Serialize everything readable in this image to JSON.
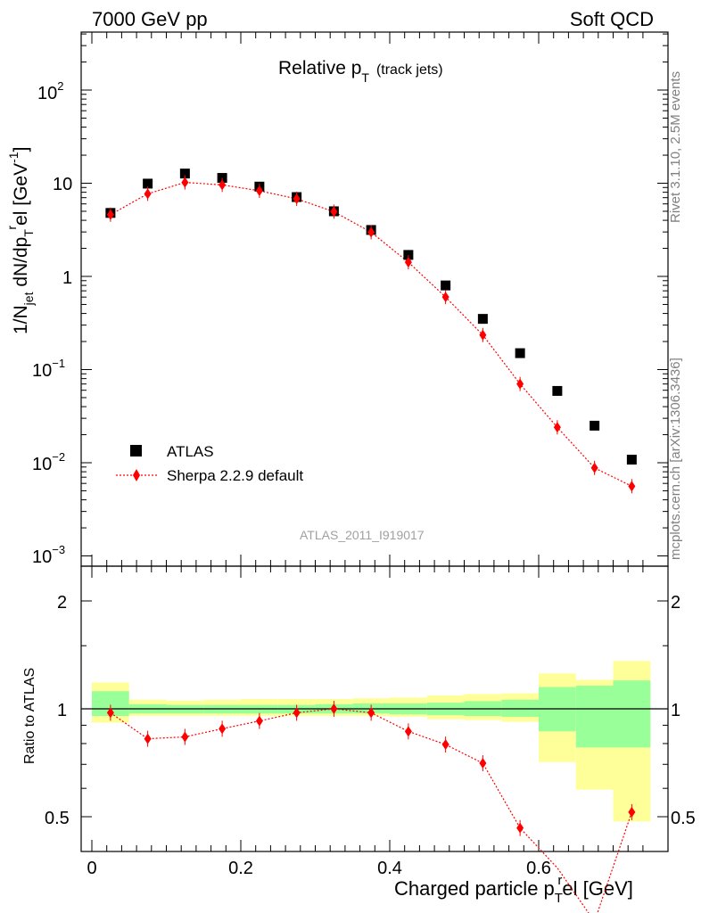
{
  "header": {
    "energy_label": "7000 GeV pp",
    "category_label": "Soft QCD"
  },
  "plot_title": {
    "main": "Relative p",
    "sub": "T",
    "suffix": "(track jets)"
  },
  "side_labels": {
    "rivet": "Rivet 3.1.10,  2.5M events",
    "source": "mcplots.cern.ch [arXiv:1306.3436]"
  },
  "watermark": "ATLAS_2011_I919017",
  "legend": {
    "data_label": "ATLAS",
    "mc_label": "Sherpa 2.2.9 default"
  },
  "axes": {
    "ylabel_main": "1/N",
    "ylabel_main_sub": "jet",
    "ylabel_main_mid": " dN/dp",
    "ylabel_main_sub2": "T",
    "ylabel_main_sup": "r",
    "ylabel_main_tail": "el [GeV",
    "ylabel_main_sup2": "-1",
    "ylabel_main_close": "]",
    "ylabel_ratio": "Ratio to ATLAS",
    "xlabel": "Charged particle p",
    "xlabel_sub": "T",
    "xlabel_sup": "r",
    "xlabel_tail": "el [GeV]",
    "main_ticks": [
      {
        "base": "10",
        "exp": "2"
      },
      {
        "base": "10",
        "exp": ""
      },
      {
        "base": "1",
        "exp": ""
      },
      {
        "base": "10",
        "exp": "−1"
      },
      {
        "base": "10",
        "exp": "−2"
      },
      {
        "base": "10",
        "exp": "−3"
      }
    ],
    "ratio_ticks": [
      "2",
      "1",
      "0.5"
    ],
    "x_ticks": [
      "0",
      "0.2",
      "0.4",
      "0.6"
    ]
  },
  "chart_data": [
    {
      "type": "scatter",
      "title": "Relative pT (track jets)",
      "xlabel": "Charged particle pTrel [GeV]",
      "ylabel": "1/Njet dN/dpTrel [GeV-1]",
      "xlim": [
        -0.02,
        0.77
      ],
      "ylim": [
        0.0008,
        500
      ],
      "yscale": "log",
      "x": [
        0.025,
        0.075,
        0.125,
        0.175,
        0.225,
        0.275,
        0.325,
        0.375,
        0.425,
        0.475,
        0.525,
        0.575,
        0.625,
        0.675,
        0.725
      ],
      "series": [
        {
          "name": "ATLAS",
          "color": "#000000",
          "marker": "square",
          "values": [
            4.8,
            9.9,
            12.7,
            11.4,
            9.2,
            7.1,
            5.0,
            3.15,
            1.7,
            0.8,
            0.35,
            0.15,
            0.059,
            0.025,
            0.0108
          ]
        },
        {
          "name": "Sherpa 2.2.9 default",
          "color": "#ff0000",
          "marker": "diamond",
          "line": "dotted",
          "values": [
            4.6,
            7.7,
            10.2,
            9.6,
            8.3,
            6.8,
            4.95,
            2.98,
            1.42,
            0.6,
            0.235,
            0.07,
            0.024,
            0.0088,
            0.0056
          ]
        }
      ]
    },
    {
      "type": "scatter",
      "ylabel": "Ratio to ATLAS",
      "xlabel": "Charged particle pTrel [GeV]",
      "xlim": [
        -0.02,
        0.77
      ],
      "ylim": [
        0.34,
        2.3
      ],
      "x": [
        0.025,
        0.075,
        0.125,
        0.175,
        0.225,
        0.275,
        0.325,
        0.375,
        0.425,
        0.475,
        0.525,
        0.575,
        0.625,
        0.675,
        0.725
      ],
      "series": [
        {
          "name": "Sherpa 2.2.9 default",
          "color": "#ff0000",
          "values": [
            0.975,
            0.825,
            0.835,
            0.88,
            0.925,
            0.975,
            1.0,
            0.975,
            0.865,
            0.795,
            0.705,
            0.465,
            0.36,
            0.255,
            0.515
          ]
        }
      ],
      "bands": {
        "bin_edges": [
          0.0,
          0.05,
          0.1,
          0.15,
          0.2,
          0.25,
          0.3,
          0.35,
          0.4,
          0.45,
          0.5,
          0.55,
          0.6,
          0.65,
          0.7,
          0.75
        ],
        "stat_lo": [
          0.955,
          0.97,
          0.97,
          0.97,
          0.97,
          0.97,
          0.97,
          0.97,
          0.965,
          0.96,
          0.955,
          0.95,
          0.865,
          0.78,
          0.78
        ],
        "stat_hi": [
          1.12,
          1.03,
          1.025,
          1.025,
          1.025,
          1.025,
          1.03,
          1.035,
          1.035,
          1.04,
          1.05,
          1.06,
          1.15,
          1.16,
          1.2
        ],
        "tot_lo": [
          0.915,
          0.955,
          0.955,
          0.955,
          0.955,
          0.955,
          0.955,
          0.955,
          0.95,
          0.935,
          0.93,
          0.92,
          0.71,
          0.595,
          0.485
        ],
        "tot_hi": [
          1.185,
          1.06,
          1.055,
          1.06,
          1.065,
          1.065,
          1.065,
          1.07,
          1.075,
          1.09,
          1.1,
          1.105,
          1.255,
          1.205,
          1.36
        ],
        "stat_color": "#99ff99",
        "total_color": "#ffff99"
      }
    }
  ]
}
